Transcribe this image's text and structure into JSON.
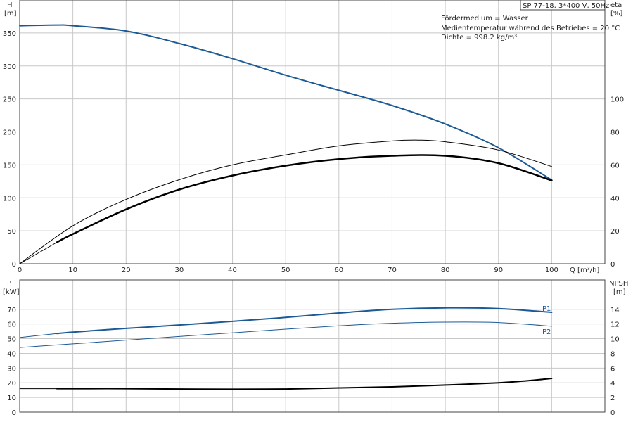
{
  "chart_data": [
    {
      "type": "line",
      "id": "head-efficiency",
      "title_box": "SP 77-18, 3*400 V, 50Hz",
      "info_lines": [
        "Fördermedium = Wasser",
        "Medientemperatur während des Betriebes = 20 °C",
        "Dichte = 998.2 kg/m³"
      ],
      "xlabel": "Q [m³/h]",
      "x_axis_name": "Q",
      "x_axis_unit": "[m³/h]",
      "xlim": [
        0,
        110
      ],
      "x_ticks": [
        0,
        10,
        20,
        30,
        40,
        50,
        60,
        70,
        80,
        90,
        100
      ],
      "y_left": {
        "name": "H",
        "unit": "[m]",
        "lim": [
          0,
          400
        ],
        "ticks": [
          0,
          50,
          100,
          150,
          200,
          250,
          300,
          350
        ]
      },
      "y_right": {
        "name": "eta",
        "unit": "[%]",
        "lim": [
          0,
          160
        ],
        "ticks": [
          0,
          20,
          40,
          60,
          80,
          100
        ]
      },
      "grid": true,
      "series": [
        {
          "axis": "left",
          "color": "#1c5a96",
          "width": 2,
          "x": [
            0,
            7,
            10,
            20,
            30,
            40,
            50,
            60,
            70,
            80,
            90,
            100
          ],
          "y": [
            361,
            362,
            361,
            353,
            334,
            311,
            286,
            263,
            240,
            212,
            176,
            127
          ]
        },
        {
          "axis": "left",
          "color": "#1c5a96",
          "width": 1,
          "x": [
            0,
            7
          ],
          "y": [
            361,
            362
          ]
        },
        {
          "axis": "right",
          "color": "#000000",
          "width": 1,
          "x": [
            0,
            10,
            20,
            30,
            40,
            50,
            60,
            70,
            75,
            80,
            90,
            100
          ],
          "y": [
            0,
            23,
            39,
            51,
            60,
            66,
            71.5,
            74.5,
            75,
            74,
            69,
            59
          ]
        },
        {
          "axis": "right",
          "color": "#000000",
          "width": 2.5,
          "x": [
            7,
            10,
            20,
            30,
            40,
            50,
            60,
            70,
            80,
            90,
            100
          ],
          "y": [
            13,
            18,
            33,
            45,
            53.5,
            59.5,
            63.5,
            65.5,
            65.5,
            61,
            50.5
          ]
        },
        {
          "axis": "right",
          "color": "#000000",
          "width": 1,
          "x": [
            0,
            7
          ],
          "y": [
            0,
            13
          ]
        }
      ]
    },
    {
      "type": "line",
      "id": "power-npsh",
      "xlim": [
        0,
        110
      ],
      "x_ticks": [
        0,
        10,
        20,
        30,
        40,
        50,
        60,
        70,
        80,
        90,
        100
      ],
      "y_left": {
        "name": "P",
        "unit": "[kW]",
        "lim": [
          0,
          90
        ],
        "ticks": [
          0,
          10,
          20,
          30,
          40,
          50,
          60,
          70
        ]
      },
      "y_right": {
        "name": "NPSH",
        "unit": "[m]",
        "lim": [
          0,
          18
        ],
        "ticks": [
          0,
          2,
          4,
          6,
          8,
          10,
          12,
          14
        ]
      },
      "grid": true,
      "series": [
        {
          "name": "P1",
          "axis": "left",
          "color": "#1c5a96",
          "width": 2,
          "x": [
            7,
            10,
            20,
            30,
            40,
            50,
            60,
            70,
            80,
            90,
            100
          ],
          "y": [
            53.5,
            54.5,
            57,
            59.3,
            61.8,
            64.5,
            67.5,
            70,
            71,
            70.5,
            68
          ]
        },
        {
          "axis": "left",
          "color": "#1c5a96",
          "width": 1,
          "x": [
            0,
            7
          ],
          "y": [
            50.8,
            53.5
          ]
        },
        {
          "name": "P2",
          "axis": "left",
          "color": "#1c5a96",
          "width": 1,
          "x": [
            0,
            10,
            20,
            30,
            40,
            50,
            60,
            70,
            80,
            90,
            100
          ],
          "y": [
            44,
            46.5,
            49,
            51.5,
            54,
            56.5,
            58.8,
            60.5,
            61.3,
            61,
            58.5
          ]
        },
        {
          "axis": "right",
          "color": "#000000",
          "width": 2,
          "x": [
            7,
            10,
            20,
            30,
            40,
            50,
            60,
            70,
            80,
            90,
            95,
            100
          ],
          "y": [
            3.2,
            3.2,
            3.2,
            3.15,
            3.12,
            3.15,
            3.3,
            3.45,
            3.7,
            4.0,
            4.25,
            4.6
          ]
        },
        {
          "axis": "right",
          "color": "#000000",
          "width": 1,
          "x": [
            0,
            7
          ],
          "y": [
            3.2,
            3.2
          ]
        }
      ]
    }
  ]
}
